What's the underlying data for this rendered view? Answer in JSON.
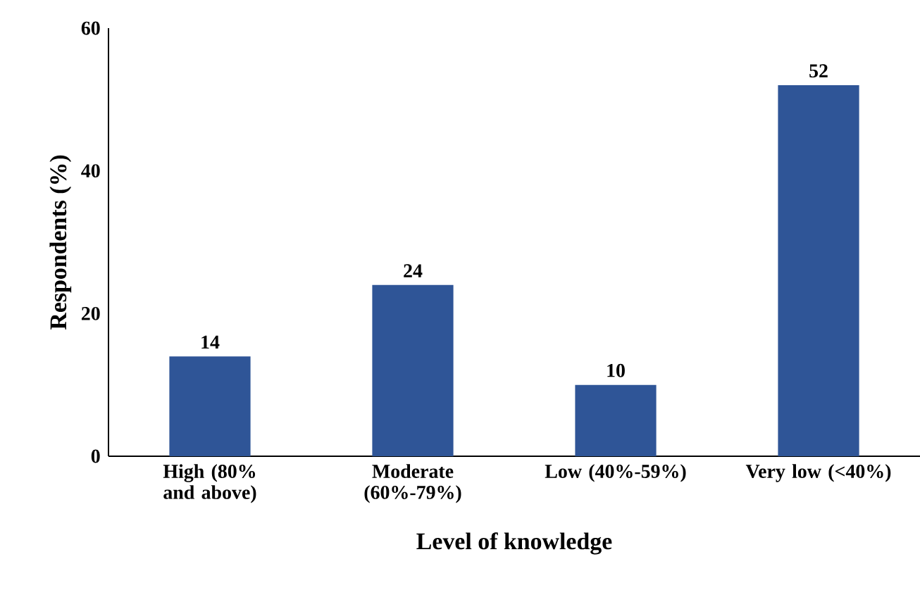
{
  "chart_data": {
    "type": "bar",
    "xlabel": "Level of knowledge",
    "ylabel": "Respondents (%)",
    "categories": [
      "High (80% and above)",
      "Moderate (60%-79%)",
      "Low (40%-59%)",
      "Very low (<40%)"
    ],
    "values": [
      14,
      24,
      10,
      52
    ],
    "color": "#2f5597",
    "ylim": [
      0,
      60
    ],
    "yticks": [
      0,
      20,
      40,
      60
    ],
    "grid": false,
    "data_labels": true
  }
}
